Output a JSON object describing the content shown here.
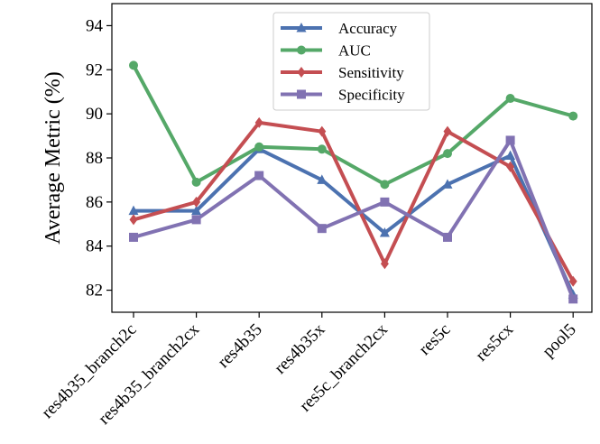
{
  "chart_data": {
    "type": "line",
    "ylabel": "Average Metric (%)",
    "xlabel": "",
    "ylim": [
      81,
      95
    ],
    "yticks": [
      82,
      84,
      86,
      88,
      90,
      92,
      94
    ],
    "categories": [
      "res4b35_branch2c",
      "res4b35_branch2cx",
      "res4b35",
      "res4b35x",
      "res5c_branch2cx",
      "res5c",
      "res5cx",
      "pool5"
    ],
    "grid": false,
    "legend_position": "top-center",
    "series": [
      {
        "name": "Accuracy",
        "color": "#4c72b0",
        "marker": "triangle",
        "values": [
          85.6,
          85.6,
          88.4,
          87.0,
          84.6,
          86.8,
          88.1,
          81.8
        ]
      },
      {
        "name": "AUC",
        "color": "#55a868",
        "marker": "circle",
        "values": [
          92.2,
          86.9,
          88.5,
          88.4,
          86.8,
          88.2,
          90.7,
          89.9
        ]
      },
      {
        "name": "Sensitivity",
        "color": "#c44e52",
        "marker": "diamond",
        "values": [
          85.2,
          86.0,
          89.6,
          89.2,
          83.2,
          89.2,
          87.6,
          82.4
        ]
      },
      {
        "name": "Specificity",
        "color": "#8172b2",
        "marker": "square",
        "values": [
          84.4,
          85.2,
          87.2,
          84.8,
          86.0,
          84.4,
          88.8,
          81.6
        ]
      }
    ]
  }
}
